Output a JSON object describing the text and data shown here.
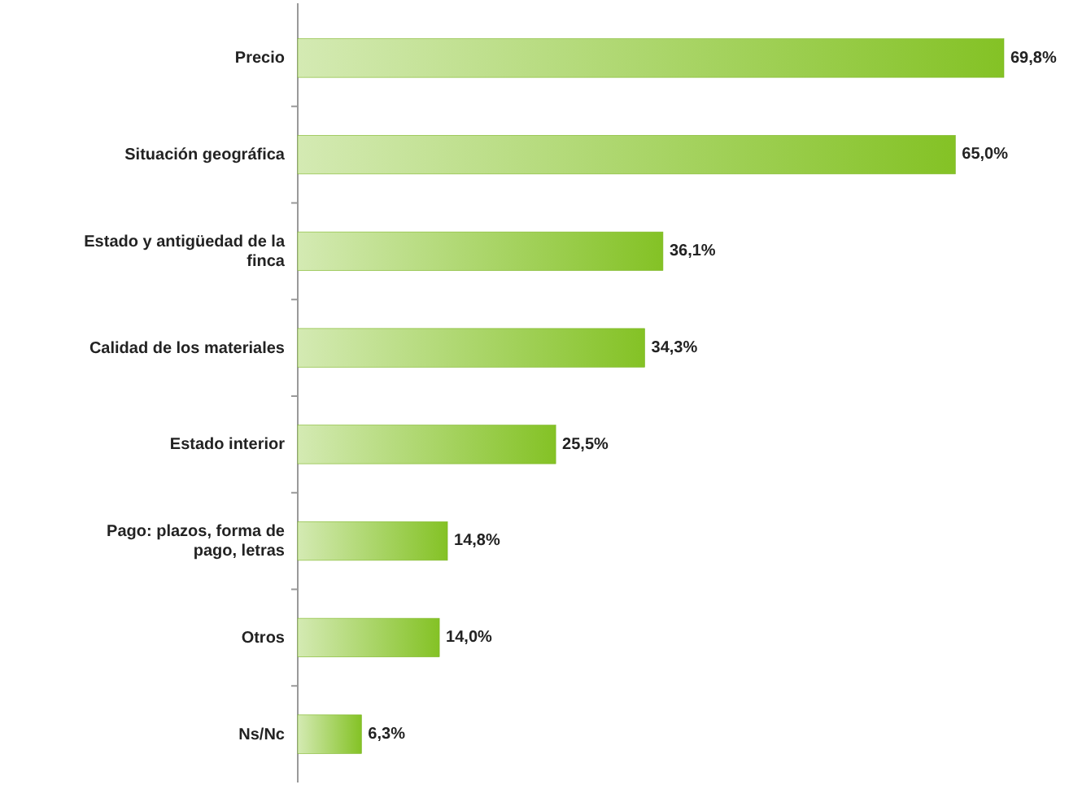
{
  "chart_data": {
    "type": "bar",
    "orientation": "horizontal",
    "categories": [
      "Precio",
      "Situación geográfica",
      "Estado y antigüedad de la finca",
      "Calidad de los materiales",
      "Estado interior",
      "Pago: plazos, forma de pago, letras",
      "Otros",
      "Ns/Nc"
    ],
    "values": [
      69.8,
      65.0,
      36.1,
      34.3,
      25.5,
      14.8,
      14.0,
      6.3
    ],
    "value_labels": [
      "69,8%",
      "65,0%",
      "36,1%",
      "34,3%",
      "25,5%",
      "14,8%",
      "14,0%",
      "6,3%"
    ],
    "color": "#84c225"
  }
}
